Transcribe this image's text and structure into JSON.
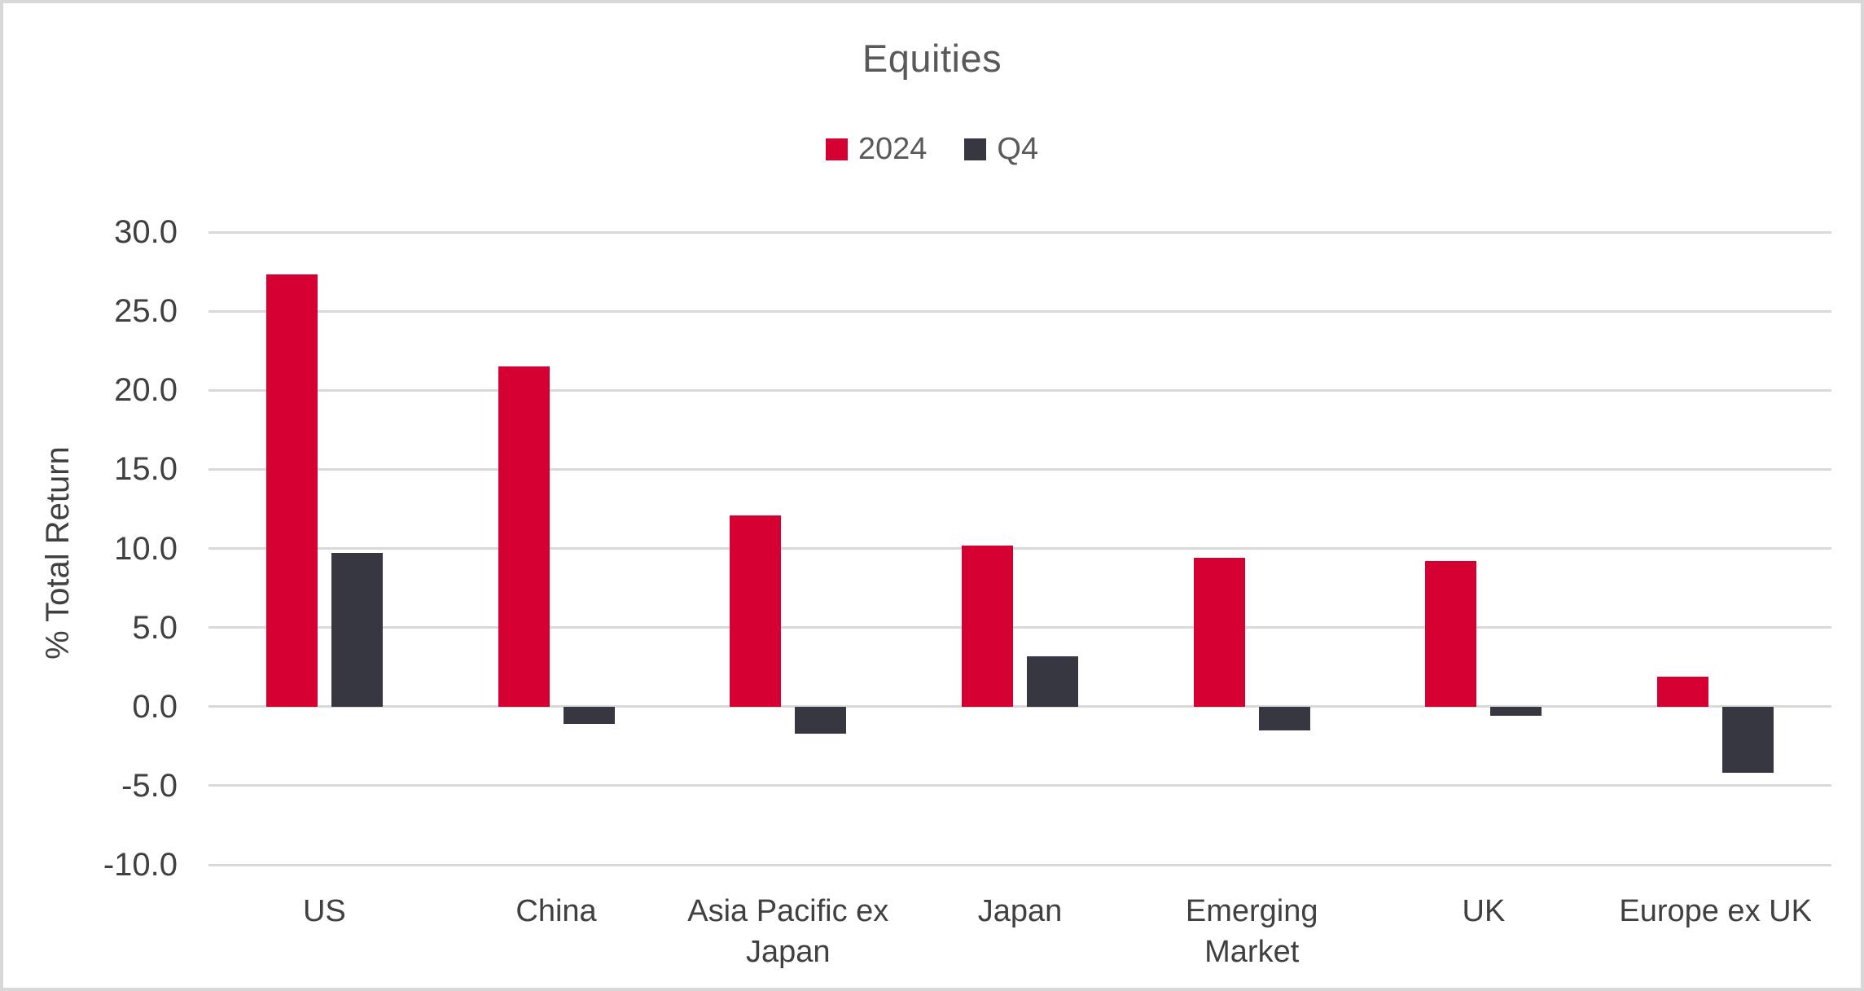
{
  "frame": {
    "border_color": "#D8D8D8",
    "background_color": "#FFFFFF"
  },
  "chart_data": {
    "type": "bar",
    "title": "Equities",
    "ylabel": "% Total Return",
    "xlabel": "",
    "categories": [
      "US",
      "China",
      "Asia Pacific ex Japan",
      "Japan",
      "Emerging Market",
      "UK",
      "Europe ex UK"
    ],
    "series": [
      {
        "name": "2024",
        "color": "#D50032",
        "values": [
          27.3,
          21.5,
          12.1,
          10.2,
          9.4,
          9.2,
          1.9
        ]
      },
      {
        "name": "Q4",
        "color": "#373742",
        "values": [
          9.7,
          -1.1,
          -1.7,
          3.2,
          -1.5,
          -0.6,
          -4.2
        ]
      }
    ],
    "ylim": [
      -10,
      30
    ],
    "ytick_step": 5,
    "ytick_labels": [
      "30.0",
      "25.0",
      "20.0",
      "15.0",
      "10.0",
      "5.0",
      "0.0",
      "-5.0",
      "-10.0"
    ],
    "grid": "horizontal",
    "gridline_color": "#D9D9D9",
    "legend_position": "top-center",
    "title_color": "#595959",
    "axis_text_color": "#404040"
  }
}
